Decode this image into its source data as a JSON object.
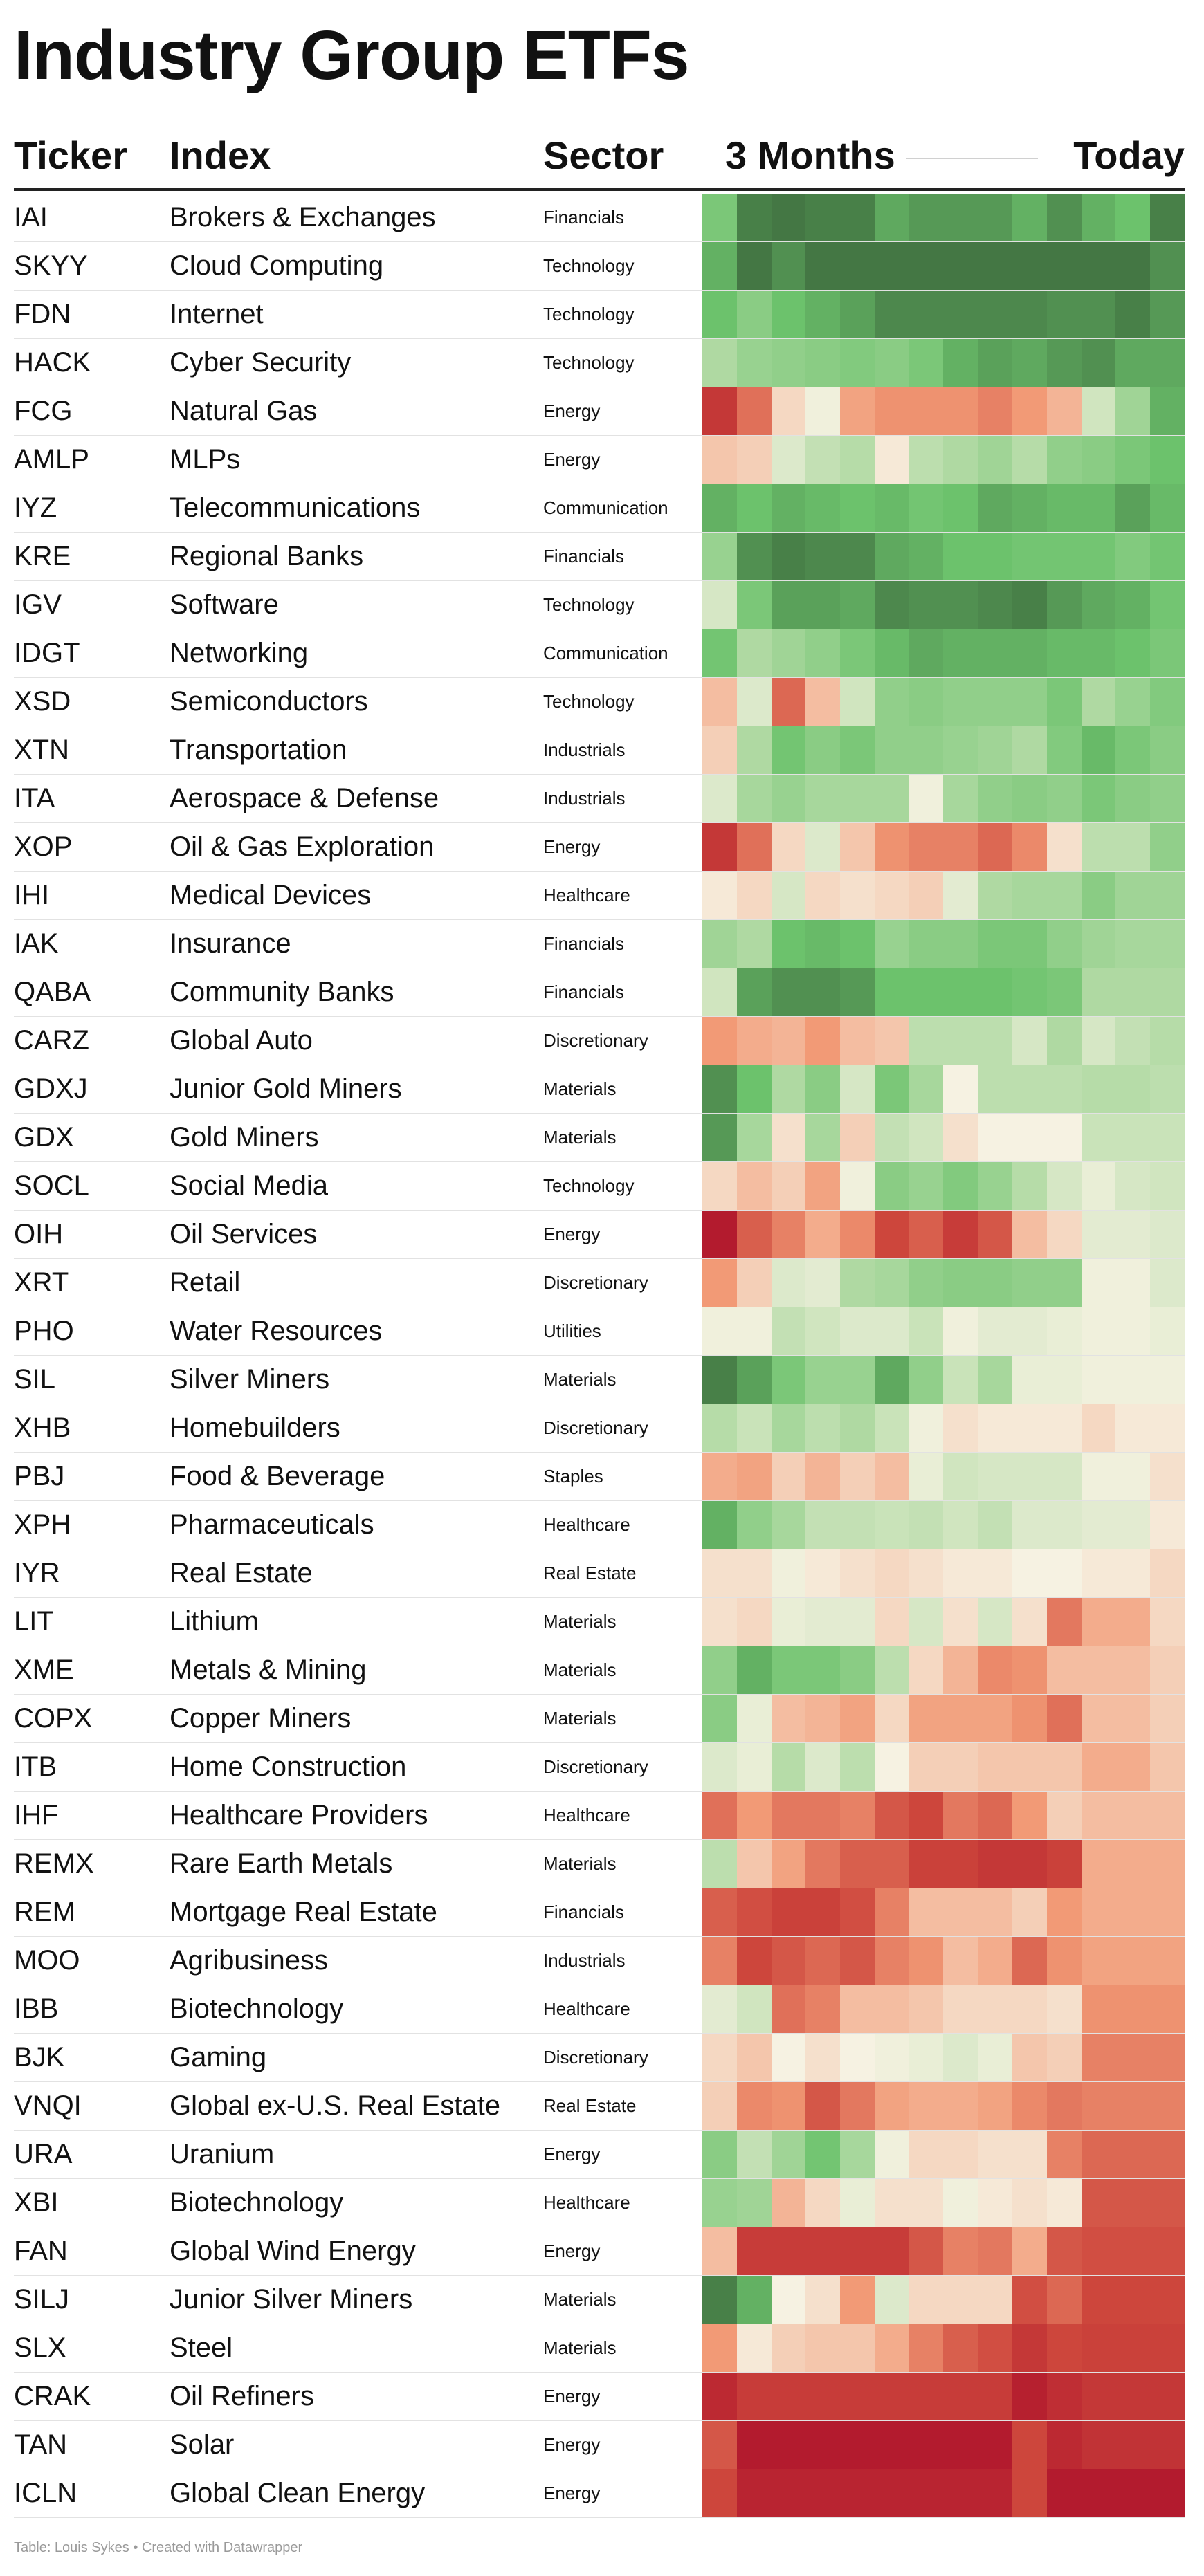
{
  "title": "Industry Group ETFs",
  "headers": {
    "ticker": "Ticker",
    "index": "Index",
    "sector": "Sector",
    "period": "3 Months",
    "today": "Today"
  },
  "footer": "Table: Louis Sykes • Created with Datawrapper",
  "colors": {
    "strong_green": "#3f6f3f",
    "mid_green": "#6cc26c",
    "neutral": "#f6f2e2",
    "mid_red": "#f29a76",
    "strong_red": "#b0162c"
  },
  "chart_data": {
    "type": "heatmap",
    "columns": 14,
    "scale": [
      -3,
      3
    ],
    "rows": [
      {
        "ticker": "IAI",
        "index": "Brokers & Exchanges",
        "sector": "Financials",
        "values": [
          1.8,
          2.8,
          2.9,
          2.8,
          2.8,
          2.3,
          2.5,
          2.5,
          2.5,
          2.2,
          2.6,
          2.2,
          2.0,
          2.8
        ]
      },
      {
        "ticker": "SKYY",
        "index": "Cloud Computing",
        "sector": "Technology",
        "values": [
          2.2,
          2.9,
          2.6,
          2.9,
          2.9,
          2.9,
          2.9,
          2.9,
          2.9,
          2.9,
          2.9,
          2.9,
          2.9,
          2.6
        ]
      },
      {
        "ticker": "FDN",
        "index": "Internet",
        "sector": "Technology",
        "values": [
          2.0,
          1.6,
          2.0,
          2.2,
          2.4,
          2.7,
          2.7,
          2.7,
          2.7,
          2.7,
          2.6,
          2.6,
          2.8,
          2.5
        ]
      },
      {
        "ticker": "HACK",
        "index": "Cyber Security",
        "sector": "Technology",
        "values": [
          1.1,
          1.4,
          1.5,
          1.6,
          1.7,
          1.6,
          1.8,
          2.2,
          2.4,
          2.3,
          2.5,
          2.6,
          2.3,
          2.3
        ]
      },
      {
        "ticker": "FCG",
        "index": "Natural Gas",
        "sector": "Energy",
        "values": [
          -2.3,
          -1.5,
          -0.3,
          0.1,
          -0.9,
          -1.1,
          -1.1,
          -1.1,
          -1.3,
          -1.0,
          -0.7,
          0.6,
          1.3,
          2.2
        ]
      },
      {
        "ticker": "AMLP",
        "index": "MLPs",
        "sector": "Energy",
        "values": [
          -0.5,
          -0.4,
          0.4,
          0.8,
          1.0,
          -0.1,
          0.9,
          1.1,
          1.3,
          1.0,
          1.5,
          1.6,
          1.8,
          2.0
        ]
      },
      {
        "ticker": "IYZ",
        "index": "Telecommunications",
        "sector": "Communication",
        "values": [
          2.2,
          2.0,
          2.2,
          2.1,
          2.0,
          2.1,
          1.9,
          2.0,
          2.3,
          2.2,
          2.1,
          2.1,
          2.4,
          2.1
        ]
      },
      {
        "ticker": "KRE",
        "index": "Regional Banks",
        "sector": "Financials",
        "values": [
          1.4,
          2.6,
          2.8,
          2.7,
          2.7,
          2.3,
          2.2,
          2.0,
          2.0,
          1.9,
          1.9,
          1.9,
          1.7,
          1.9
        ]
      },
      {
        "ticker": "IGV",
        "index": "Software",
        "sector": "Technology",
        "values": [
          0.5,
          1.8,
          2.4,
          2.4,
          2.3,
          2.7,
          2.6,
          2.6,
          2.7,
          2.8,
          2.5,
          2.3,
          2.2,
          1.9
        ]
      },
      {
        "ticker": "IDGT",
        "index": "Networking",
        "sector": "Communication",
        "values": [
          1.9,
          1.1,
          1.3,
          1.5,
          1.8,
          2.1,
          2.3,
          2.2,
          2.2,
          2.2,
          2.1,
          2.1,
          2.0,
          1.8
        ]
      },
      {
        "ticker": "XSD",
        "index": "Semiconductors",
        "sector": "Technology",
        "values": [
          -0.6,
          0.4,
          -1.6,
          -0.6,
          0.6,
          1.5,
          1.6,
          1.5,
          1.5,
          1.5,
          1.8,
          1.1,
          1.4,
          1.7
        ]
      },
      {
        "ticker": "XTN",
        "index": "Transportation",
        "sector": "Industrials",
        "values": [
          -0.4,
          1.1,
          1.9,
          1.6,
          1.8,
          1.5,
          1.5,
          1.4,
          1.3,
          1.1,
          1.7,
          2.1,
          1.8,
          1.6
        ]
      },
      {
        "ticker": "ITA",
        "index": "Aerospace & Defense",
        "sector": "Industrials",
        "values": [
          0.4,
          1.2,
          1.4,
          1.2,
          1.2,
          1.2,
          0.1,
          1.2,
          1.5,
          1.6,
          1.5,
          1.8,
          1.6,
          1.5
        ]
      },
      {
        "ticker": "XOP",
        "index": "Oil & Gas Exploration",
        "sector": "Energy",
        "values": [
          -2.3,
          -1.5,
          -0.3,
          0.4,
          -0.5,
          -1.1,
          -1.3,
          -1.3,
          -1.6,
          -1.2,
          -0.2,
          0.9,
          0.9,
          1.5
        ]
      },
      {
        "ticker": "IHI",
        "index": "Medical Devices",
        "sector": "Healthcare",
        "values": [
          -0.1,
          -0.3,
          0.5,
          -0.3,
          -0.2,
          -0.3,
          -0.4,
          0.3,
          1.1,
          1.2,
          1.2,
          1.6,
          1.3,
          1.3
        ]
      },
      {
        "ticker": "IAK",
        "index": "Insurance",
        "sector": "Financials",
        "values": [
          1.3,
          1.1,
          2.0,
          2.1,
          2.0,
          1.4,
          1.6,
          1.6,
          1.8,
          1.8,
          1.5,
          1.3,
          1.2,
          1.2
        ]
      },
      {
        "ticker": "QABA",
        "index": "Community Banks",
        "sector": "Financials",
        "values": [
          0.6,
          2.4,
          2.6,
          2.6,
          2.5,
          2.0,
          2.0,
          2.0,
          2.0,
          1.9,
          1.8,
          1.1,
          1.1,
          1.1
        ]
      },
      {
        "ticker": "CARZ",
        "index": "Global Auto",
        "sector": "Discretionary",
        "values": [
          -1.0,
          -0.8,
          -0.7,
          -1.0,
          -0.6,
          -0.5,
          0.9,
          0.9,
          0.9,
          0.5,
          1.1,
          0.5,
          0.8,
          1.0
        ]
      },
      {
        "ticker": "GDXJ",
        "index": "Junior Gold Miners",
        "sector": "Materials",
        "values": [
          2.6,
          2.0,
          1.1,
          1.6,
          0.5,
          1.8,
          1.2,
          0.0,
          0.9,
          0.9,
          0.9,
          1.0,
          1.0,
          0.9
        ]
      },
      {
        "ticker": "GDX",
        "index": "Gold Miners",
        "sector": "Materials",
        "values": [
          2.5,
          1.2,
          -0.2,
          1.2,
          -0.4,
          0.8,
          0.6,
          -0.2,
          0.0,
          0.0,
          0.0,
          0.7,
          0.7,
          0.7
        ]
      },
      {
        "ticker": "SOCL",
        "index": "Social Media",
        "sector": "Technology",
        "values": [
          -0.3,
          -0.6,
          -0.4,
          -0.9,
          0.1,
          1.6,
          1.4,
          1.7,
          1.4,
          1.0,
          0.5,
          0.2,
          0.5,
          0.6
        ]
      },
      {
        "ticker": "OIH",
        "index": "Oil Services",
        "sector": "Energy",
        "values": [
          -2.9,
          -1.7,
          -1.3,
          -0.8,
          -1.2,
          -2.0,
          -1.7,
          -2.2,
          -1.8,
          -0.6,
          -0.3,
          0.3,
          0.3,
          0.4
        ]
      },
      {
        "ticker": "XRT",
        "index": "Retail",
        "sector": "Discretionary",
        "values": [
          -1.0,
          -0.4,
          0.4,
          0.3,
          1.1,
          1.2,
          1.5,
          1.6,
          1.6,
          1.5,
          1.5,
          0.1,
          0.1,
          0.4
        ]
      },
      {
        "ticker": "PHO",
        "index": "Water Resources",
        "sector": "Utilities",
        "values": [
          0.1,
          0.1,
          0.8,
          0.6,
          0.4,
          0.4,
          0.7,
          0.1,
          0.3,
          0.3,
          0.2,
          0.1,
          0.1,
          0.2
        ]
      },
      {
        "ticker": "SIL",
        "index": "Silver Miners",
        "sector": "Materials",
        "values": [
          2.8,
          2.4,
          1.8,
          1.4,
          1.4,
          2.3,
          1.5,
          0.7,
          1.2,
          0.2,
          0.2,
          0.1,
          0.1,
          0.1
        ]
      },
      {
        "ticker": "XHB",
        "index": "Homebuilders",
        "sector": "Discretionary",
        "values": [
          1.0,
          0.7,
          1.2,
          0.9,
          1.1,
          0.7,
          0.1,
          -0.2,
          -0.1,
          -0.1,
          -0.1,
          -0.3,
          -0.1,
          -0.1
        ]
      },
      {
        "ticker": "PBJ",
        "index": "Food & Beverage",
        "sector": "Staples",
        "values": [
          -0.8,
          -0.9,
          -0.4,
          -0.7,
          -0.4,
          -0.6,
          0.2,
          0.6,
          0.5,
          0.5,
          0.5,
          0.1,
          0.1,
          -0.2
        ]
      },
      {
        "ticker": "XPH",
        "index": "Pharmaceuticals",
        "sector": "Healthcare",
        "values": [
          2.2,
          1.5,
          1.2,
          0.8,
          0.8,
          0.7,
          0.8,
          0.6,
          0.8,
          0.4,
          0.4,
          0.3,
          0.3,
          -0.1
        ]
      },
      {
        "ticker": "IYR",
        "index": "Real Estate",
        "sector": "Real Estate",
        "values": [
          -0.2,
          -0.2,
          0.1,
          -0.1,
          -0.2,
          -0.3,
          -0.2,
          -0.1,
          -0.1,
          0.0,
          0.0,
          -0.1,
          -0.1,
          -0.3
        ]
      },
      {
        "ticker": "LIT",
        "index": "Lithium",
        "sector": "Materials",
        "values": [
          -0.2,
          -0.3,
          0.2,
          0.3,
          0.3,
          -0.3,
          0.5,
          -0.2,
          0.5,
          -0.2,
          -1.4,
          -0.8,
          -0.8,
          -0.3
        ]
      },
      {
        "ticker": "XME",
        "index": "Metals & Mining",
        "sector": "Materials",
        "values": [
          1.5,
          2.2,
          1.8,
          1.8,
          1.6,
          0.9,
          -0.3,
          -0.7,
          -1.2,
          -1.1,
          -0.6,
          -0.6,
          -0.6,
          -0.4
        ]
      },
      {
        "ticker": "COPX",
        "index": "Copper Miners",
        "sector": "Materials",
        "values": [
          1.6,
          0.2,
          -0.6,
          -0.7,
          -0.9,
          -0.3,
          -0.9,
          -0.9,
          -0.9,
          -1.1,
          -1.5,
          -0.6,
          -0.6,
          -0.4
        ]
      },
      {
        "ticker": "ITB",
        "index": "Home Construction",
        "sector": "Discretionary",
        "values": [
          0.4,
          0.2,
          1.0,
          0.4,
          0.9,
          0.0,
          -0.4,
          -0.4,
          -0.5,
          -0.5,
          -0.5,
          -0.8,
          -0.8,
          -0.5
        ]
      },
      {
        "ticker": "IHF",
        "index": "Healthcare Providers",
        "sector": "Healthcare",
        "values": [
          -1.5,
          -1.0,
          -1.4,
          -1.4,
          -1.3,
          -1.8,
          -2.0,
          -1.4,
          -1.6,
          -1.0,
          -0.4,
          -0.6,
          -0.6,
          -0.6
        ]
      },
      {
        "ticker": "REMX",
        "index": "Rare Earth Metals",
        "sector": "Materials",
        "values": [
          0.9,
          -0.5,
          -0.9,
          -1.4,
          -1.7,
          -1.7,
          -2.1,
          -2.1,
          -2.3,
          -2.3,
          -2.1,
          -0.8,
          -0.8,
          -0.8
        ]
      },
      {
        "ticker": "REM",
        "index": "Mortgage Real Estate",
        "sector": "Financials",
        "values": [
          -1.7,
          -1.9,
          -2.1,
          -2.1,
          -1.9,
          -1.3,
          -0.6,
          -0.6,
          -0.6,
          -0.4,
          -1.0,
          -0.8,
          -0.8,
          -0.8
        ]
      },
      {
        "ticker": "MOO",
        "index": "Agribusiness",
        "sector": "Industrials",
        "values": [
          -1.3,
          -2.0,
          -1.8,
          -1.6,
          -1.8,
          -1.3,
          -1.1,
          -0.6,
          -0.8,
          -1.6,
          -1.1,
          -0.9,
          -0.9,
          -0.9
        ]
      },
      {
        "ticker": "IBB",
        "index": "Biotechnology",
        "sector": "Healthcare",
        "values": [
          0.3,
          0.6,
          -1.5,
          -1.3,
          -0.6,
          -0.6,
          -0.5,
          -0.3,
          -0.3,
          -0.3,
          -0.2,
          -1.1,
          -1.1,
          -1.1
        ]
      },
      {
        "ticker": "BJK",
        "index": "Gaming",
        "sector": "Discretionary",
        "values": [
          -0.3,
          -0.5,
          0.0,
          -0.2,
          0.0,
          0.1,
          0.2,
          0.4,
          0.2,
          -0.5,
          -0.4,
          -1.3,
          -1.3,
          -1.3
        ]
      },
      {
        "ticker": "VNQI",
        "index": "Global ex-U.S. Real Estate",
        "sector": "Real Estate",
        "values": [
          -0.4,
          -1.2,
          -1.1,
          -1.8,
          -1.4,
          -0.9,
          -0.8,
          -0.8,
          -0.9,
          -1.2,
          -1.4,
          -1.3,
          -1.3,
          -1.3
        ]
      },
      {
        "ticker": "URA",
        "index": "Uranium",
        "sector": "Energy",
        "values": [
          1.6,
          0.8,
          1.3,
          1.9,
          1.2,
          0.1,
          -0.3,
          -0.3,
          -0.2,
          -0.2,
          -1.3,
          -1.6,
          -1.6,
          -1.6
        ]
      },
      {
        "ticker": "XBI",
        "index": "Biotechnology",
        "sector": "Healthcare",
        "values": [
          1.4,
          1.3,
          -0.7,
          -0.3,
          0.2,
          -0.2,
          -0.2,
          0.1,
          -0.1,
          -0.2,
          -0.1,
          -1.8,
          -1.8,
          -1.8
        ]
      },
      {
        "ticker": "FAN",
        "index": "Global Wind Energy",
        "sector": "Energy",
        "values": [
          -0.6,
          -2.2,
          -2.2,
          -2.2,
          -2.2,
          -2.2,
          -1.8,
          -1.3,
          -1.4,
          -0.8,
          -1.8,
          -1.9,
          -1.9,
          -1.9
        ]
      },
      {
        "ticker": "SILJ",
        "index": "Junior Silver Miners",
        "sector": "Materials",
        "values": [
          2.8,
          2.2,
          0.0,
          -0.2,
          -1.0,
          0.4,
          -0.3,
          -0.3,
          -0.3,
          -1.9,
          -1.6,
          -2.0,
          -2.0,
          -2.0
        ]
      },
      {
        "ticker": "SLX",
        "index": "Steel",
        "sector": "Materials",
        "values": [
          -1.0,
          -0.1,
          -0.4,
          -0.5,
          -0.5,
          -0.8,
          -1.3,
          -1.7,
          -1.9,
          -2.3,
          -2.0,
          -2.1,
          -2.1,
          -2.1
        ]
      },
      {
        "ticker": "CRAK",
        "index": "Oil Refiners",
        "sector": "Energy",
        "values": [
          -2.6,
          -2.2,
          -2.2,
          -2.2,
          -2.2,
          -2.2,
          -2.2,
          -2.2,
          -2.2,
          -2.8,
          -2.5,
          -2.3,
          -2.3,
          -2.3
        ]
      },
      {
        "ticker": "TAN",
        "index": "Solar",
        "sector": "Energy",
        "values": [
          -1.8,
          -2.9,
          -2.9,
          -2.9,
          -2.9,
          -2.9,
          -2.9,
          -2.9,
          -2.9,
          -2.0,
          -2.6,
          -2.4,
          -2.4,
          -2.4
        ]
      },
      {
        "ticker": "ICLN",
        "index": "Global Clean Energy",
        "sector": "Energy",
        "values": [
          -2.0,
          -2.7,
          -2.7,
          -2.7,
          -2.7,
          -2.7,
          -2.7,
          -2.7,
          -2.7,
          -2.0,
          -2.9,
          -2.9,
          -2.9,
          -2.9
        ]
      }
    ]
  }
}
